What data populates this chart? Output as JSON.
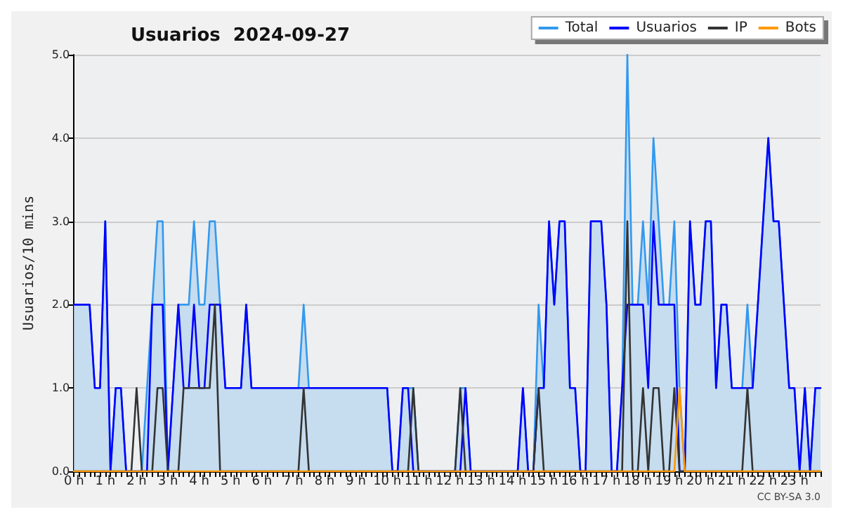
{
  "chart_data": {
    "type": "line",
    "title": "Usuarios  2024-09-27",
    "ylabel": "Usuarios/10 mins",
    "annotations": [
      "CC BY-SA 3.0"
    ],
    "categories": [
      "0 h",
      null,
      null,
      null,
      null,
      null,
      "1 h",
      null,
      null,
      null,
      null,
      null,
      "2 h",
      null,
      null,
      null,
      null,
      null,
      "3 h",
      null,
      null,
      null,
      null,
      null,
      "4 h",
      null,
      null,
      null,
      null,
      null,
      "5 h",
      null,
      null,
      null,
      null,
      null,
      "6 h",
      null,
      null,
      null,
      null,
      null,
      "7 h",
      null,
      null,
      null,
      null,
      null,
      "8 h",
      null,
      null,
      null,
      null,
      null,
      "9 h",
      null,
      null,
      null,
      null,
      null,
      "10 h",
      null,
      null,
      null,
      null,
      null,
      "11 h",
      null,
      null,
      null,
      null,
      null,
      "12 h",
      null,
      null,
      null,
      null,
      null,
      "13 h",
      null,
      null,
      null,
      null,
      null,
      "14 h",
      null,
      null,
      null,
      null,
      null,
      "15 h",
      null,
      null,
      null,
      null,
      null,
      "16 h",
      null,
      null,
      null,
      null,
      null,
      "17 h",
      null,
      null,
      null,
      null,
      null,
      "18 h",
      null,
      null,
      null,
      null,
      null,
      "19 h",
      null,
      null,
      null,
      null,
      null,
      "20 h",
      null,
      null,
      null,
      null,
      null,
      "21 h",
      null,
      null,
      null,
      null,
      null,
      "22 h",
      null,
      null,
      null,
      null,
      null,
      "23 h",
      null,
      null,
      null,
      null,
      null
    ],
    "series": [
      {
        "name": "Total",
        "type": "area",
        "color": "#3399ee",
        "values": [
          2,
          2,
          2,
          2,
          1,
          1,
          3,
          0,
          1,
          1,
          0,
          0,
          0,
          0,
          1,
          2,
          3,
          3,
          0,
          1,
          2,
          2,
          2,
          3,
          2,
          2,
          3,
          3,
          2,
          1,
          1,
          1,
          1,
          2,
          1,
          1,
          1,
          1,
          1,
          1,
          1,
          1,
          1,
          1,
          2,
          1,
          1,
          1,
          1,
          1,
          1,
          1,
          1,
          1,
          1,
          1,
          1,
          1,
          1,
          1,
          1,
          0,
          0,
          1,
          1,
          1,
          0,
          0,
          0,
          0,
          0,
          0,
          0,
          0,
          1,
          1,
          0,
          0,
          0,
          0,
          0,
          0,
          0,
          0,
          0,
          0,
          1,
          0,
          0,
          2,
          1,
          3,
          2,
          3,
          3,
          1,
          1,
          0,
          0,
          3,
          3,
          3,
          2,
          0,
          0,
          1,
          5,
          2,
          2,
          3,
          2,
          4,
          3,
          2,
          2,
          3,
          1,
          0,
          3,
          2,
          2,
          3,
          3,
          1,
          2,
          2,
          1,
          1,
          1,
          2,
          1,
          2,
          3,
          4,
          3,
          3,
          2,
          1,
          1,
          0,
          1,
          0,
          1,
          1
        ]
      },
      {
        "name": "Usuarios",
        "color": "#0000ff",
        "values": [
          2,
          2,
          2,
          2,
          1,
          1,
          3,
          0,
          1,
          1,
          0,
          0,
          0,
          0,
          0,
          2,
          2,
          2,
          0,
          1,
          2,
          1,
          1,
          2,
          1,
          1,
          2,
          2,
          2,
          1,
          1,
          1,
          1,
          2,
          1,
          1,
          1,
          1,
          1,
          1,
          1,
          1,
          1,
          1,
          1,
          1,
          1,
          1,
          1,
          1,
          1,
          1,
          1,
          1,
          1,
          1,
          1,
          1,
          1,
          1,
          1,
          0,
          0,
          1,
          1,
          0,
          0,
          0,
          0,
          0,
          0,
          0,
          0,
          0,
          0,
          1,
          0,
          0,
          0,
          0,
          0,
          0,
          0,
          0,
          0,
          0,
          1,
          0,
          0,
          1,
          1,
          3,
          2,
          3,
          3,
          1,
          1,
          0,
          0,
          3,
          3,
          3,
          2,
          0,
          0,
          1,
          2,
          2,
          2,
          2,
          1,
          3,
          2,
          2,
          2,
          2,
          0,
          0,
          3,
          2,
          2,
          3,
          3,
          1,
          2,
          2,
          1,
          1,
          1,
          1,
          1,
          2,
          3,
          4,
          3,
          3,
          2,
          1,
          1,
          0,
          1,
          0,
          1,
          1
        ]
      },
      {
        "name": "IP",
        "color": "#333333",
        "values": [
          0,
          0,
          0,
          0,
          0,
          0,
          0,
          0,
          0,
          0,
          0,
          0,
          1,
          0,
          0,
          0,
          1,
          1,
          0,
          0,
          0,
          1,
          1,
          1,
          1,
          1,
          1,
          2,
          0,
          0,
          0,
          0,
          0,
          0,
          0,
          0,
          0,
          0,
          0,
          0,
          0,
          0,
          0,
          0,
          1,
          0,
          0,
          0,
          0,
          0,
          0,
          0,
          0,
          0,
          0,
          0,
          0,
          0,
          0,
          0,
          0,
          0,
          0,
          0,
          0,
          1,
          0,
          0,
          0,
          0,
          0,
          0,
          0,
          0,
          1,
          0,
          0,
          0,
          0,
          0,
          0,
          0,
          0,
          0,
          0,
          0,
          0,
          0,
          0,
          1,
          0,
          0,
          0,
          0,
          0,
          0,
          0,
          0,
          0,
          0,
          0,
          0,
          0,
          0,
          0,
          0,
          3,
          0,
          0,
          1,
          0,
          1,
          1,
          0,
          0,
          1,
          0,
          0,
          0,
          0,
          0,
          0,
          0,
          0,
          0,
          0,
          0,
          0,
          0,
          1,
          0,
          0,
          0,
          0,
          0,
          0,
          0,
          0,
          0,
          0,
          0,
          0,
          0,
          0
        ]
      },
      {
        "name": "Bots",
        "color": "#ff9900",
        "values": [
          0,
          0,
          0,
          0,
          0,
          0,
          0,
          0,
          0,
          0,
          0,
          0,
          0,
          0,
          0,
          0,
          0,
          0,
          0,
          0,
          0,
          0,
          0,
          0,
          0,
          0,
          0,
          0,
          0,
          0,
          0,
          0,
          0,
          0,
          0,
          0,
          0,
          0,
          0,
          0,
          0,
          0,
          0,
          0,
          0,
          0,
          0,
          0,
          0,
          0,
          0,
          0,
          0,
          0,
          0,
          0,
          0,
          0,
          0,
          0,
          0,
          0,
          0,
          0,
          0,
          0,
          0,
          0,
          0,
          0,
          0,
          0,
          0,
          0,
          0,
          0,
          0,
          0,
          0,
          0,
          0,
          0,
          0,
          0,
          0,
          0,
          0,
          0,
          0,
          0,
          0,
          0,
          0,
          0,
          0,
          0,
          0,
          0,
          0,
          0,
          0,
          0,
          0,
          0,
          0,
          0,
          0,
          0,
          0,
          0,
          0,
          0,
          0,
          0,
          0,
          0,
          1,
          0,
          0,
          0,
          0,
          0,
          0,
          0,
          0,
          0,
          0,
          0,
          0,
          0,
          0,
          0,
          0,
          0,
          0,
          0,
          0,
          0,
          0,
          0,
          0,
          0,
          0,
          0
        ]
      }
    ],
    "ylim": [
      0,
      5
    ],
    "yticks": [
      {
        "value": 0,
        "label": "0.0"
      },
      {
        "value": 1,
        "label": "1.0"
      },
      {
        "value": 2,
        "label": "2.0"
      },
      {
        "value": 3,
        "label": "3.0"
      },
      {
        "value": 4,
        "label": "4.0"
      },
      {
        "value": 5,
        "label": "5.0"
      }
    ],
    "grid": "y",
    "legend": "top right",
    "marker": "none",
    "line_style": "solid"
  }
}
